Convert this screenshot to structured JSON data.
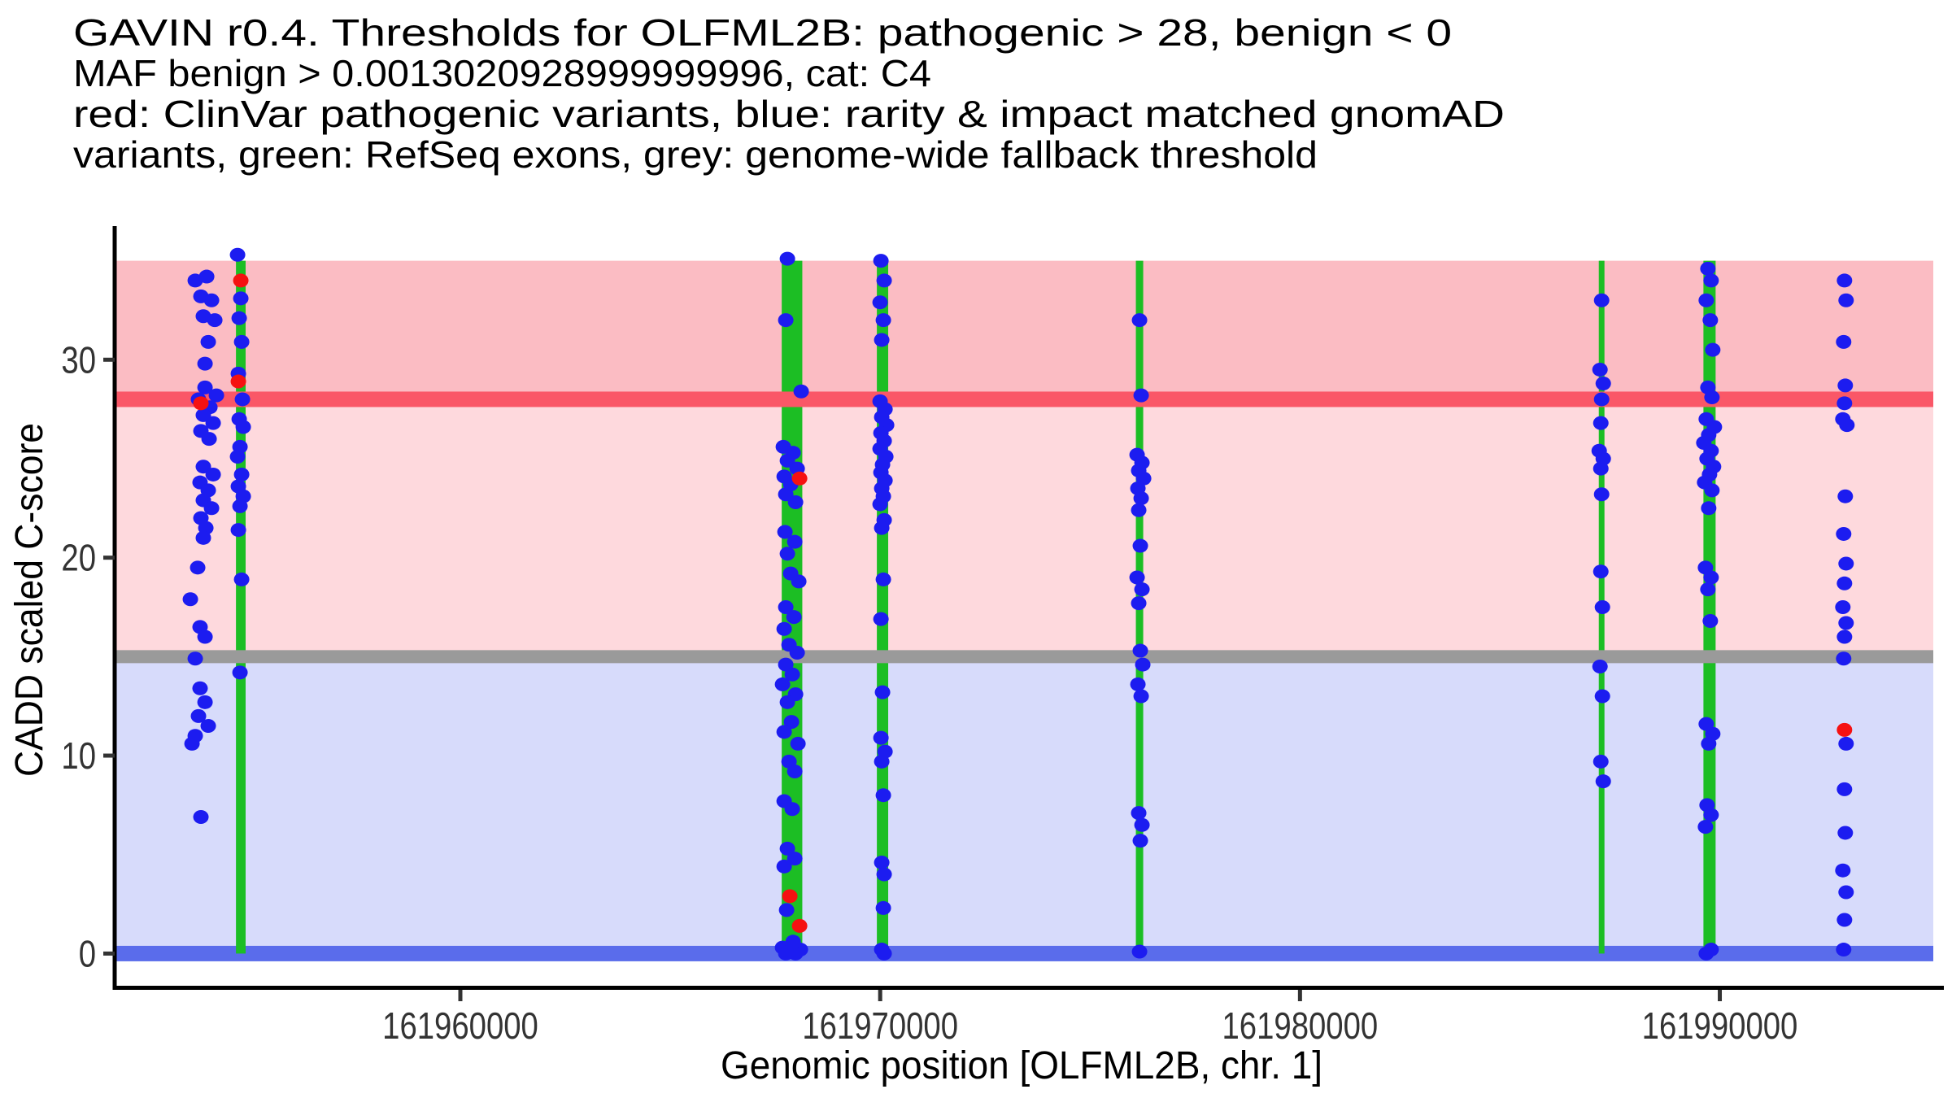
{
  "page": {
    "background": "#FFFFFF"
  },
  "chart_data": {
    "type": "scatter",
    "title_lines": [
      "GAVIN r0.4. Thresholds for OLFML2B: pathogenic > 28, benign < 0",
      "MAF benign > 0.0013020928999999996, cat: C4",
      "red: ClinVar pathogenic variants, blue: rarity & impact matched gnomAD",
      "variants, green: RefSeq exons, grey: genome-wide fallback threshold"
    ],
    "xlabel": "Genomic position [OLFML2B, chr. 1]",
    "ylabel": "CADD scaled C-score",
    "x_range": [
      161951766,
      161995337
    ],
    "y_range": [
      -1.75,
      36.75
    ],
    "band_x_range": [
      161951805,
      161995085
    ],
    "band_y_range": [
      0,
      35
    ],
    "grid": false,
    "legend": "none",
    "x_axis": {
      "ticks": [
        {
          "value": 161960000,
          "label": "161960000"
        },
        {
          "value": 161970000,
          "label": "161970000"
        },
        {
          "value": 161980000,
          "label": "161980000"
        },
        {
          "value": 161990000,
          "label": "161990000"
        }
      ]
    },
    "y_axis": {
      "ticks": [
        {
          "value": 0,
          "label": "0"
        },
        {
          "value": 10,
          "label": "10"
        },
        {
          "value": 20,
          "label": "20"
        },
        {
          "value": 30,
          "label": "30"
        }
      ]
    },
    "bands": [
      {
        "name": "above-pathogenic-threshold",
        "from": 28,
        "to": 35,
        "color": "#FBBCC3"
      },
      {
        "name": "intermediate",
        "from": 15,
        "to": 28,
        "color": "#FED9DD"
      },
      {
        "name": "benign",
        "from": 0,
        "to": 15,
        "color": "#D7DBFB"
      }
    ],
    "thresholds": [
      {
        "name": "pathogenic",
        "value": 28,
        "color": "#FA5767",
        "thickness_px": 19,
        "layer": "front"
      },
      {
        "name": "genome-wide-fallback",
        "value": 15,
        "color": "#9A9A9A",
        "thickness_px": 16,
        "layer": "front"
      },
      {
        "name": "benign",
        "value": 0,
        "color": "#5A6CEB",
        "thickness_px": 19,
        "layer": "back"
      }
    ],
    "exons": [
      {
        "center": 161954770,
        "width_bp": 230
      },
      {
        "center": 161967900,
        "width_bp": 490
      },
      {
        "center": 161970056,
        "width_bp": 270
      },
      {
        "center": 161976178,
        "width_bp": 175
      },
      {
        "center": 161987185,
        "width_bp": 135
      },
      {
        "center": 161989755,
        "width_bp": 290
      }
    ],
    "exon_color": "#1CBE24",
    "series": [
      {
        "name": "rarity & impact matched gnomAD variants",
        "color": "#1C1CF0",
        "points": [
          [
            161953957,
            34.2
          ],
          [
            161953685,
            34.0
          ],
          [
            161953820,
            33.2
          ],
          [
            161954073,
            33.0
          ],
          [
            161953878,
            32.2
          ],
          [
            161954150,
            32.0
          ],
          [
            161953995,
            30.9
          ],
          [
            161953918,
            29.8
          ],
          [
            161953918,
            28.6
          ],
          [
            161954189,
            28.2
          ],
          [
            161953762,
            28.0
          ],
          [
            161954034,
            27.6
          ],
          [
            161953878,
            27.2
          ],
          [
            161954112,
            26.8
          ],
          [
            161953820,
            26.4
          ],
          [
            161954015,
            26.0
          ],
          [
            161953878,
            24.6
          ],
          [
            161954112,
            24.2
          ],
          [
            161953800,
            23.8
          ],
          [
            161953995,
            23.4
          ],
          [
            161953878,
            22.9
          ],
          [
            161954073,
            22.5
          ],
          [
            161953820,
            22.0
          ],
          [
            161953937,
            21.5
          ],
          [
            161953878,
            21.0
          ],
          [
            161953743,
            19.5
          ],
          [
            161953569,
            17.9
          ],
          [
            161953800,
            16.5
          ],
          [
            161953918,
            16.0
          ],
          [
            161953685,
            14.9
          ],
          [
            161953800,
            13.4
          ],
          [
            161953918,
            12.7
          ],
          [
            161953762,
            12.0
          ],
          [
            161953995,
            11.5
          ],
          [
            161953685,
            11.0
          ],
          [
            161953608,
            10.6
          ],
          [
            161953820,
            6.9
          ],
          [
            161954693,
            35.3
          ],
          [
            161954770,
            33.1
          ],
          [
            161954732,
            32.1
          ],
          [
            161954790,
            30.9
          ],
          [
            161954712,
            29.3
          ],
          [
            161954809,
            28.0
          ],
          [
            161954732,
            27.0
          ],
          [
            161954829,
            26.6
          ],
          [
            161954751,
            25.6
          ],
          [
            161954693,
            25.1
          ],
          [
            161954790,
            24.2
          ],
          [
            161954712,
            23.6
          ],
          [
            161954829,
            23.1
          ],
          [
            161954751,
            22.6
          ],
          [
            161954712,
            21.4
          ],
          [
            161954790,
            18.9
          ],
          [
            161954751,
            14.2
          ],
          [
            161967790,
            35.1
          ],
          [
            161967751,
            32.0
          ],
          [
            161968119,
            28.4
          ],
          [
            161967693,
            25.6
          ],
          [
            161967926,
            25.3
          ],
          [
            161967790,
            24.9
          ],
          [
            161968023,
            24.5
          ],
          [
            161967713,
            24.1
          ],
          [
            161967868,
            23.7
          ],
          [
            161967751,
            23.2
          ],
          [
            161967984,
            22.8
          ],
          [
            161967732,
            21.3
          ],
          [
            161967965,
            20.8
          ],
          [
            161967790,
            20.2
          ],
          [
            161967868,
            19.2
          ],
          [
            161968061,
            18.8
          ],
          [
            161967751,
            17.5
          ],
          [
            161967945,
            17.0
          ],
          [
            161967713,
            16.4
          ],
          [
            161967829,
            15.6
          ],
          [
            161968023,
            15.2
          ],
          [
            161967751,
            14.6
          ],
          [
            161967906,
            14.1
          ],
          [
            161967674,
            13.6
          ],
          [
            161967984,
            13.1
          ],
          [
            161967790,
            12.7
          ],
          [
            161967887,
            11.7
          ],
          [
            161967713,
            11.2
          ],
          [
            161968042,
            10.6
          ],
          [
            161967829,
            9.7
          ],
          [
            161967965,
            9.2
          ],
          [
            161967713,
            7.7
          ],
          [
            161967906,
            7.3
          ],
          [
            161967790,
            5.3
          ],
          [
            161967965,
            4.8
          ],
          [
            161967713,
            4.4
          ],
          [
            161967771,
            2.2
          ],
          [
            161967926,
            0.6
          ],
          [
            161967674,
            0.3
          ],
          [
            161968100,
            0.2
          ],
          [
            161967829,
            0.1
          ],
          [
            161967984,
            0.0
          ],
          [
            161967751,
            0.0
          ],
          [
            161970018,
            35.0
          ],
          [
            161970095,
            34.0
          ],
          [
            161969998,
            32.9
          ],
          [
            161970076,
            32.0
          ],
          [
            161970037,
            31.0
          ],
          [
            161969998,
            27.9
          ],
          [
            161970115,
            27.5
          ],
          [
            161970037,
            27.1
          ],
          [
            161970153,
            26.7
          ],
          [
            161970018,
            26.3
          ],
          [
            161970095,
            25.9
          ],
          [
            161969998,
            25.5
          ],
          [
            161970134,
            25.1
          ],
          [
            161970056,
            24.7
          ],
          [
            161970018,
            24.3
          ],
          [
            161970115,
            23.9
          ],
          [
            161970037,
            23.5
          ],
          [
            161970076,
            23.1
          ],
          [
            161969998,
            22.7
          ],
          [
            161970095,
            21.9
          ],
          [
            161970037,
            21.5
          ],
          [
            161970076,
            18.9
          ],
          [
            161970018,
            16.9
          ],
          [
            161970056,
            13.2
          ],
          [
            161970018,
            10.9
          ],
          [
            161970115,
            10.2
          ],
          [
            161970037,
            9.7
          ],
          [
            161970076,
            8.0
          ],
          [
            161970037,
            4.6
          ],
          [
            161970095,
            4.0
          ],
          [
            161970076,
            2.3
          ],
          [
            161970037,
            0.2
          ],
          [
            161970095,
            0.0
          ],
          [
            161976178,
            32.0
          ],
          [
            161976217,
            28.2
          ],
          [
            161976120,
            25.2
          ],
          [
            161976236,
            24.8
          ],
          [
            161976158,
            24.4
          ],
          [
            161976275,
            24.0
          ],
          [
            161976139,
            23.5
          ],
          [
            161976217,
            23.0
          ],
          [
            161976158,
            22.4
          ],
          [
            161976197,
            20.6
          ],
          [
            161976120,
            19.0
          ],
          [
            161976236,
            18.4
          ],
          [
            161976158,
            17.7
          ],
          [
            161976197,
            15.3
          ],
          [
            161976255,
            14.6
          ],
          [
            161976139,
            13.6
          ],
          [
            161976217,
            13.0
          ],
          [
            161976158,
            7.1
          ],
          [
            161976236,
            6.5
          ],
          [
            161976197,
            5.7
          ],
          [
            161976178,
            0.1
          ],
          [
            161987185,
            33.0
          ],
          [
            161987146,
            29.5
          ],
          [
            161987224,
            28.8
          ],
          [
            161987185,
            28.0
          ],
          [
            161987166,
            26.8
          ],
          [
            161987127,
            25.4
          ],
          [
            161987224,
            25.0
          ],
          [
            161987166,
            24.5
          ],
          [
            161987185,
            23.2
          ],
          [
            161987166,
            19.3
          ],
          [
            161987204,
            17.5
          ],
          [
            161987146,
            14.5
          ],
          [
            161987204,
            13.0
          ],
          [
            161987166,
            9.7
          ],
          [
            161987224,
            8.7
          ],
          [
            161989716,
            34.6
          ],
          [
            161989793,
            34.0
          ],
          [
            161989677,
            33.0
          ],
          [
            161989774,
            32.0
          ],
          [
            161989832,
            30.5
          ],
          [
            161989716,
            28.6
          ],
          [
            161989813,
            28.1
          ],
          [
            161989677,
            27.0
          ],
          [
            161989871,
            26.6
          ],
          [
            161989735,
            26.2
          ],
          [
            161989619,
            25.8
          ],
          [
            161989793,
            25.4
          ],
          [
            161989696,
            25.0
          ],
          [
            161989851,
            24.6
          ],
          [
            161989755,
            24.2
          ],
          [
            161989638,
            23.8
          ],
          [
            161989813,
            23.4
          ],
          [
            161989735,
            22.5
          ],
          [
            161989658,
            19.5
          ],
          [
            161989793,
            19.0
          ],
          [
            161989716,
            18.4
          ],
          [
            161989774,
            16.8
          ],
          [
            161989677,
            11.6
          ],
          [
            161989832,
            11.1
          ],
          [
            161989735,
            10.6
          ],
          [
            161989696,
            7.5
          ],
          [
            161989793,
            7.0
          ],
          [
            161989658,
            6.4
          ],
          [
            161989793,
            0.2
          ],
          [
            161989677,
            0.0
          ],
          [
            161992970,
            34.0
          ],
          [
            161993008,
            33.0
          ],
          [
            161992950,
            30.9
          ],
          [
            161992989,
            28.7
          ],
          [
            161992970,
            27.8
          ],
          [
            161992931,
            27.0
          ],
          [
            161993028,
            26.7
          ],
          [
            161992989,
            23.1
          ],
          [
            161992950,
            21.2
          ],
          [
            161993008,
            19.7
          ],
          [
            161992970,
            18.7
          ],
          [
            161992931,
            17.5
          ],
          [
            161993008,
            16.7
          ],
          [
            161992970,
            16.0
          ],
          [
            161992950,
            14.9
          ],
          [
            161993008,
            10.6
          ],
          [
            161992970,
            8.3
          ],
          [
            161992989,
            6.1
          ],
          [
            161992931,
            4.2
          ],
          [
            161993008,
            3.1
          ],
          [
            161992970,
            1.7
          ],
          [
            161992950,
            0.2
          ]
        ]
      },
      {
        "name": "ClinVar pathogenic variants",
        "color": "#F51111",
        "points": [
          [
            161953820,
            27.8
          ],
          [
            161954770,
            34.0
          ],
          [
            161954712,
            28.9
          ],
          [
            161968081,
            24.0
          ],
          [
            161967848,
            2.9
          ],
          [
            161968081,
            1.4
          ],
          [
            161992970,
            11.3
          ]
        ]
      }
    ]
  }
}
